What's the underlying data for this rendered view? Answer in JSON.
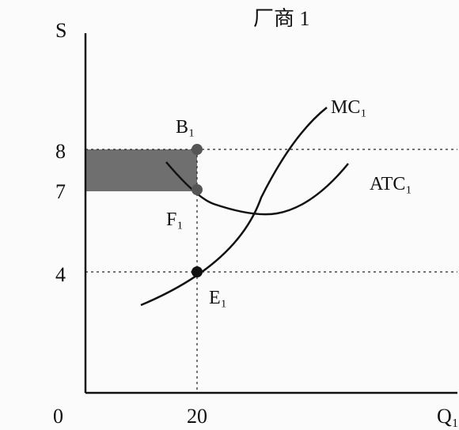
{
  "diagram": {
    "title": "厂商 1",
    "y_axis_label": "S",
    "x_axis_label": "Q₁",
    "origin_label": "0",
    "y_ticks": [
      "8",
      "7",
      "4"
    ],
    "x_ticks": [
      "20"
    ],
    "curves": {
      "mc": "MC₁",
      "atc": "ATC₁"
    },
    "points": {
      "b": "B₁",
      "f": "F₁",
      "e": "E₁"
    },
    "colors": {
      "ink": "#111111",
      "shade": "#6f6f6f",
      "grey_point": "#555555"
    }
  }
}
